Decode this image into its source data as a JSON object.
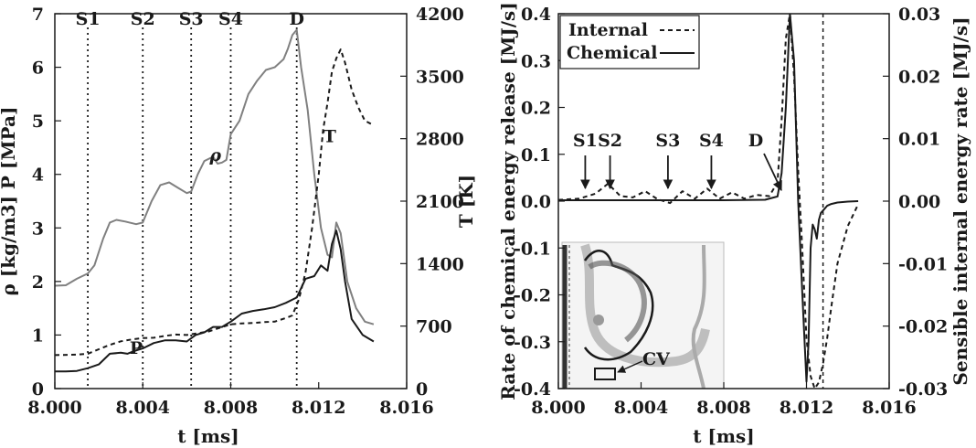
{
  "chart_data": [
    {
      "type": "line",
      "xlabel": "t [ms]",
      "ylabel_left": "ρ [kg/m3]  P [MPa]",
      "ylabel_right": "T [K]",
      "xlim": [
        8.0,
        8.016
      ],
      "ylim_left": [
        0,
        7
      ],
      "ylim_right": [
        0,
        4200
      ],
      "x_ticks": [
        "8.000",
        "8.004",
        "8.008",
        "8.012",
        "8.016"
      ],
      "y_ticks_left": [
        "0",
        "1",
        "2",
        "3",
        "4",
        "5",
        "6",
        "7"
      ],
      "y_ticks_right": [
        "0",
        "700",
        "1400",
        "2100",
        "2800",
        "3500",
        "4200"
      ],
      "grid": false,
      "vlines": [
        {
          "label": "S1",
          "x": 8.0015
        },
        {
          "label": "S2",
          "x": 8.004
        },
        {
          "label": "S3",
          "x": 8.0062
        },
        {
          "label": "S4",
          "x": 8.008
        },
        {
          "label": "D",
          "x": 8.011
        }
      ],
      "annotations": [
        {
          "text": "ρ",
          "x": 8.0073,
          "y": 4.25
        },
        {
          "text": "T",
          "x": 8.0125,
          "y": 4.6
        },
        {
          "text": "P",
          "x": 8.0037,
          "y": 0.65
        }
      ],
      "series": [
        {
          "name": "ρ",
          "axis": "left",
          "color": "#808080",
          "dash": "solid",
          "x": [
            8.0,
            8.0005,
            8.001,
            8.0015,
            8.0018,
            8.0022,
            8.0025,
            8.0028,
            8.0032,
            8.0037,
            8.004,
            8.0044,
            8.0048,
            8.0052,
            8.0056,
            8.006,
            8.0062,
            8.0065,
            8.0068,
            8.0072,
            8.0074,
            8.0076,
            8.0078,
            8.008,
            8.0084,
            8.0088,
            8.0092,
            8.0096,
            8.01,
            8.0104,
            8.0106,
            8.0108,
            8.011,
            8.0112,
            8.0115,
            8.0118,
            8.0121,
            8.0124,
            8.0126,
            8.0128,
            8.013,
            8.0133,
            8.0137,
            8.0141,
            8.0145
          ],
          "y": [
            1.92,
            1.93,
            2.05,
            2.15,
            2.3,
            2.8,
            3.1,
            3.15,
            3.12,
            3.07,
            3.1,
            3.5,
            3.8,
            3.85,
            3.75,
            3.65,
            3.68,
            4.0,
            4.25,
            4.33,
            4.2,
            4.22,
            4.27,
            4.75,
            5.0,
            5.5,
            5.75,
            5.95,
            6.0,
            6.15,
            6.35,
            6.6,
            6.7,
            6.0,
            5.2,
            4.0,
            3.0,
            2.5,
            2.45,
            3.1,
            2.9,
            2.0,
            1.5,
            1.25,
            1.2
          ]
        },
        {
          "name": "T",
          "axis": "right",
          "color": "#1a1a1a",
          "dash": "dashed",
          "x": [
            8.0,
            8.001,
            8.0015,
            8.002,
            8.0025,
            8.003,
            8.0035,
            8.004,
            8.0045,
            8.005,
            8.0055,
            8.006,
            8.0065,
            8.007,
            8.0075,
            8.008,
            8.0085,
            8.009,
            8.0095,
            8.01,
            8.0105,
            8.0108,
            8.0111,
            8.0114,
            8.0117,
            8.012,
            8.0122,
            8.0124,
            8.0126,
            8.0128,
            8.013,
            8.0132,
            8.0135,
            8.0138,
            8.0141,
            8.0145
          ],
          "y": [
            375,
            380,
            390,
            440,
            490,
            530,
            550,
            565,
            570,
            590,
            605,
            600,
            620,
            640,
            680,
            720,
            730,
            735,
            745,
            750,
            790,
            820,
            1000,
            1300,
            1800,
            2400,
            2900,
            3200,
            3550,
            3700,
            3800,
            3650,
            3350,
            3150,
            3000,
            2950
          ]
        },
        {
          "name": "P",
          "axis": "left",
          "color": "#1a1a1a",
          "dash": "solid",
          "x": [
            8.0,
            8.0005,
            8.001,
            8.0015,
            8.002,
            8.0025,
            8.003,
            8.0033,
            8.0036,
            8.004,
            8.0045,
            8.005,
            8.0055,
            8.006,
            8.0064,
            8.0068,
            8.0072,
            8.0076,
            8.008,
            8.0085,
            8.009,
            8.0095,
            8.01,
            8.0105,
            8.011,
            8.0114,
            8.0118,
            8.0121,
            8.0124,
            8.0126,
            8.0128,
            8.013,
            8.0132,
            8.0135,
            8.014,
            8.0145
          ],
          "y": [
            0.32,
            0.32,
            0.33,
            0.38,
            0.45,
            0.65,
            0.67,
            0.65,
            0.7,
            0.75,
            0.85,
            0.9,
            0.9,
            0.88,
            1.0,
            1.05,
            1.15,
            1.15,
            1.25,
            1.4,
            1.45,
            1.48,
            1.52,
            1.6,
            1.7,
            2.05,
            2.1,
            2.3,
            2.2,
            2.7,
            2.95,
            2.6,
            2.0,
            1.3,
            1.0,
            0.88
          ]
        }
      ]
    },
    {
      "type": "line",
      "xlabel": "t [ms]",
      "ylabel_left": "Rate of chemical energy release [MJ/s]",
      "ylabel_right": "Sensible internal energy rate [MJ/s]",
      "xlim": [
        8.0,
        8.016
      ],
      "ylim_left": [
        -0.4,
        0.4
      ],
      "ylim_right": [
        -0.03,
        0.03
      ],
      "x_ticks": [
        "8.000",
        "8.004",
        "8.008",
        "8.012",
        "8.016"
      ],
      "y_ticks_left": [
        "0.4",
        "0.3",
        "0.2",
        "0.1",
        "0.0",
        "-0.1",
        "-0.2",
        "-0.3",
        "-0.4"
      ],
      "y_ticks_right": [
        "0.03",
        "0.02",
        "0.01",
        "0.00",
        "-0.01",
        "-0.02",
        "-0.03"
      ],
      "legend": {
        "position": "top-left",
        "entries": [
          "Internal",
          "Chemical"
        ]
      },
      "arrows": [
        "S1",
        "S2",
        "S3",
        "S4",
        "D"
      ],
      "inset": {
        "label": "CV"
      },
      "series": [
        {
          "name": "Internal",
          "axis": "right",
          "color": "#1a1a1a",
          "dash": "dashed",
          "x": [
            8.0,
            8.001,
            8.0018,
            8.0024,
            8.003,
            8.0036,
            8.0042,
            8.0048,
            8.0054,
            8.006,
            8.0066,
            8.0072,
            8.0078,
            8.0084,
            8.009,
            8.0096,
            8.0102,
            8.0106,
            8.0108,
            8.011,
            8.0112,
            8.0114,
            8.0116,
            8.0118,
            8.012,
            8.0122,
            8.0124,
            8.0126,
            8.0128,
            8.013,
            8.0132,
            8.0135,
            8.014,
            8.0145
          ],
          "y": [
            0.0002,
            0.0004,
            0.0012,
            0.0028,
            0.0008,
            0.0006,
            0.0016,
            0.0003,
            -0.0003,
            0.0016,
            0.0004,
            0.002,
            0.0004,
            0.0014,
            0.0004,
            0.001,
            0.0008,
            0.003,
            0.013,
            0.026,
            0.03,
            0.02,
            0.005,
            -0.008,
            -0.022,
            -0.028,
            -0.03,
            -0.029,
            -0.026,
            -0.022,
            -0.017,
            -0.01,
            -0.004,
            -0.0005
          ]
        },
        {
          "name": "Chemical",
          "axis": "left",
          "color": "#1a1a1a",
          "dash": "solid",
          "x": [
            8.0,
            8.002,
            8.005,
            8.008,
            8.01,
            8.0106,
            8.0108,
            8.011,
            8.0112,
            8.0114,
            8.0116,
            8.0118,
            8.012,
            8.0121,
            8.0122,
            8.0123,
            8.0124,
            8.0125,
            8.0126,
            8.0127,
            8.0128,
            8.013,
            8.0132,
            8.0135,
            8.014,
            8.0145
          ],
          "y": [
            0.002,
            0.002,
            0.002,
            0.002,
            0.003,
            0.01,
            0.06,
            0.2,
            0.4,
            0.3,
            0.0,
            -0.2,
            -0.385,
            -0.3,
            -0.1,
            -0.05,
            -0.06,
            -0.08,
            -0.04,
            -0.025,
            -0.02,
            -0.01,
            -0.006,
            -0.003,
            -0.001,
            0.0
          ]
        }
      ]
    }
  ]
}
